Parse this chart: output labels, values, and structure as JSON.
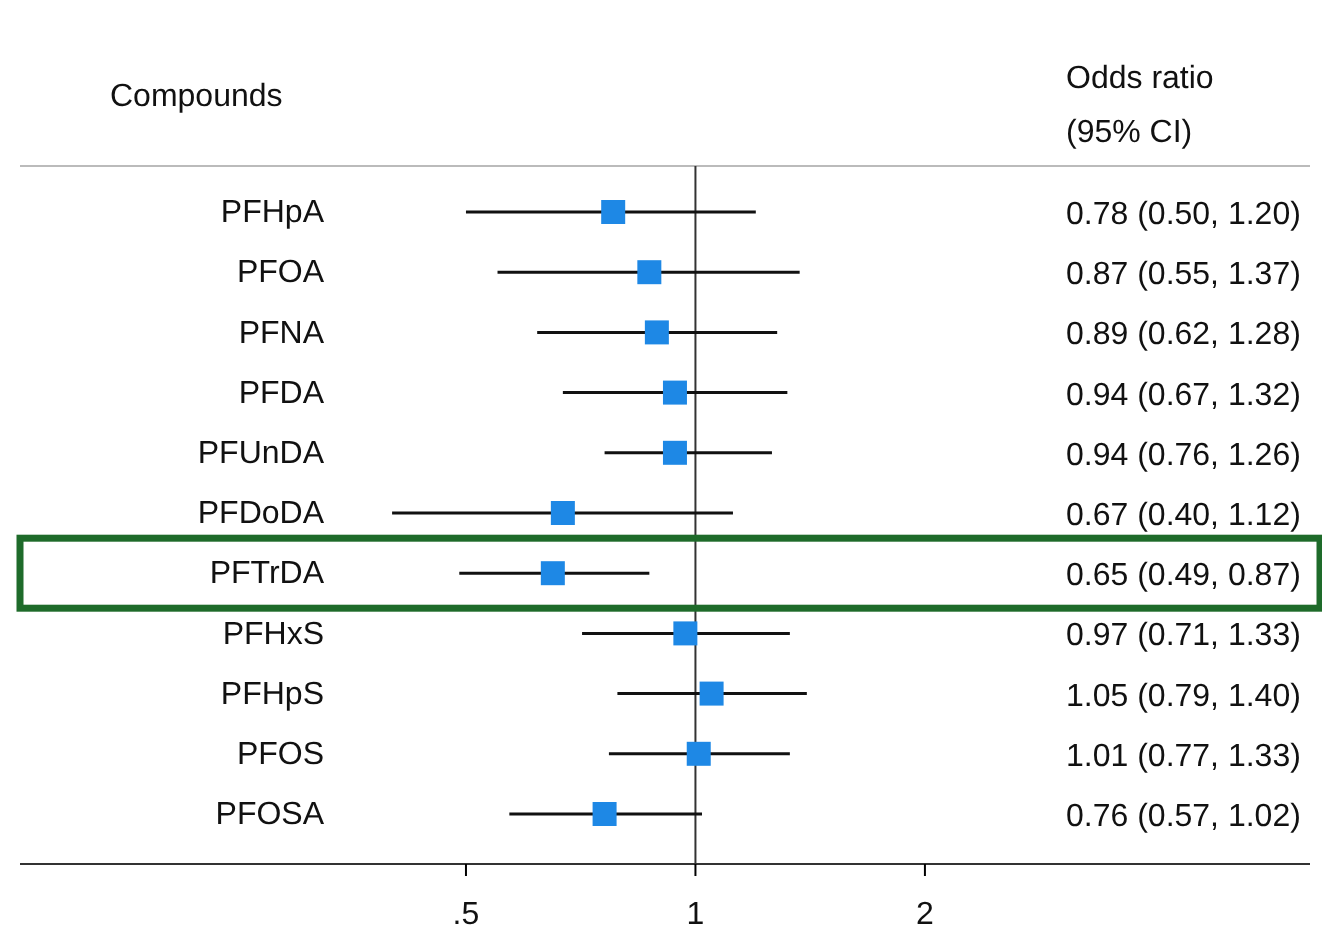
{
  "chart_data": {
    "type": "scatter",
    "orientation": "horizontal",
    "log": "x",
    "marker": "square",
    "color": "#1e88e5",
    "categories": [
      "PFHpA",
      "PFOA",
      "PFNA",
      "PFDA",
      "PFUnDA",
      "PFDoDA",
      "PFTrDA",
      "PFHxS",
      "PFHpS",
      "PFOS",
      "PFOSA"
    ],
    "values": [
      0.78,
      0.87,
      0.89,
      0.94,
      0.94,
      0.67,
      0.65,
      0.97,
      1.05,
      1.01,
      0.76
    ],
    "errors": [
      [
        0.5,
        1.2
      ],
      [
        0.55,
        1.37
      ],
      [
        0.62,
        1.28
      ],
      [
        0.67,
        1.32
      ],
      [
        0.76,
        1.26
      ],
      [
        0.4,
        1.12
      ],
      [
        0.49,
        0.87
      ],
      [
        0.71,
        1.33
      ],
      [
        0.79,
        1.4
      ],
      [
        0.77,
        1.33
      ],
      [
        0.57,
        1.02
      ]
    ],
    "xlim": [
      0.13,
      6.4
    ],
    "xticks": [
      {
        "value": 0.5,
        "label": ".5"
      },
      {
        "value": 1,
        "label": "1"
      },
      {
        "value": 2,
        "label": "2"
      }
    ],
    "ref_lines": [
      {
        "axis": "x",
        "value": 1,
        "color": "#333333"
      }
    ],
    "annotations": [
      "Compounds",
      "Odds ratio",
      "(95% CI)",
      "0.78 (0.50, 1.20)",
      "0.87 (0.55, 1.37)",
      "0.89 (0.62, 1.28)",
      "0.94 (0.67, 1.32)",
      "0.94 (0.76, 1.26)",
      "0.67 (0.40, 1.12)",
      "0.65 (0.49, 0.87)",
      "0.97 (0.71, 1.33)",
      "1.05 (0.79, 1.40)",
      "1.01 (0.77, 1.33)",
      "0.76 (0.57, 1.02)"
    ],
    "grid": false
  }
}
